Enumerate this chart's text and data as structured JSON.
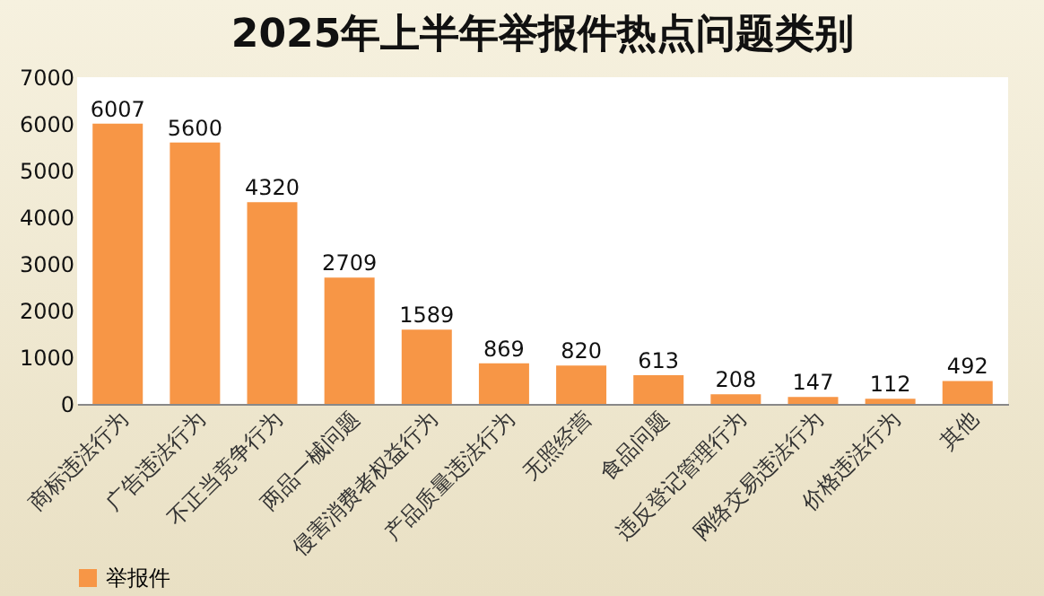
{
  "chart_data": {
    "type": "bar",
    "title": "2025年上半年举报件热点问题类别",
    "categories": [
      "商标违法行为",
      "广告违法行为",
      "不正当竞争行为",
      "两品一械问题",
      "侵害消费者权益行为",
      "产品质量违法行为",
      "无照经营",
      "食品问题",
      "违反登记管理行为",
      "网络交易违法行为",
      "价格违法行为",
      "其他"
    ],
    "series": [
      {
        "name": "举报件",
        "color": "#f79646",
        "values": [
          6007,
          5600,
          4320,
          2709,
          1589,
          869,
          820,
          613,
          208,
          147,
          112,
          492
        ]
      }
    ],
    "ylim": [
      0,
      7000
    ],
    "yticks": [
      0,
      1000,
      2000,
      3000,
      4000,
      5000,
      6000,
      7000
    ],
    "data_labels": true,
    "legend": "bottom",
    "grid": false
  }
}
